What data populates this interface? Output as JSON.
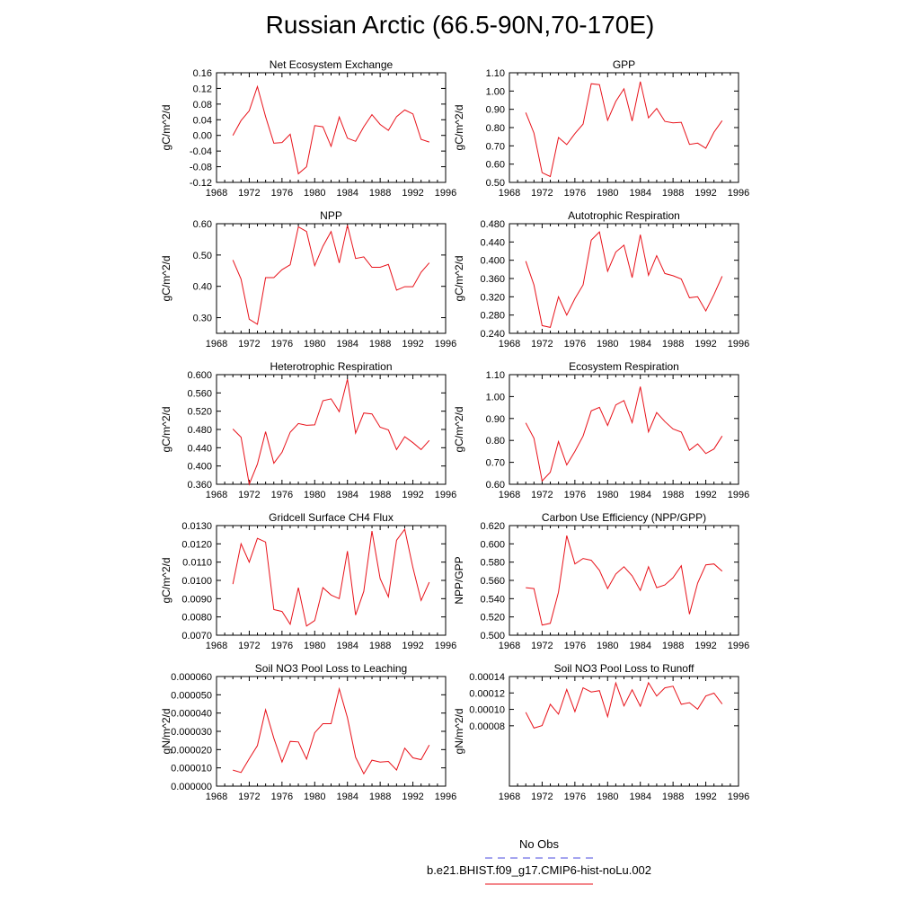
{
  "title": "Russian Arctic (66.5-90N,70-170E)",
  "legend": {
    "obs_label": "No Obs",
    "obs_color": "#4a4adf",
    "model_label": "b.e21.BHIST.f09_g17.CMIP6-hist-noLu.002",
    "model_color": "#e8121a"
  },
  "chart_data": [
    {
      "type": "line",
      "title": "Net Ecosystem Exchange",
      "ylabel": "gC/m^2/d",
      "xlim": [
        1968,
        1996
      ],
      "x_ticks": [
        "1968",
        "1972",
        "1976",
        "1980",
        "1984",
        "1988",
        "1992",
        "1996"
      ],
      "ylim": [
        -0.12,
        0.16
      ],
      "y_ticks": [
        "-0.12",
        "-0.08",
        "-0.04",
        "0.00",
        "0.04",
        "0.08",
        "0.12",
        "0.16"
      ],
      "x": [
        1970,
        1971,
        1972,
        1973,
        1974,
        1975,
        1976,
        1977,
        1978,
        1979,
        1980,
        1981,
        1982,
        1983,
        1984,
        1985,
        1986,
        1987,
        1988,
        1989,
        1990,
        1991,
        1992,
        1993,
        1994
      ],
      "series": [
        {
          "color": "#e8121a",
          "values": [
            0.0,
            0.038,
            0.063,
            0.125,
            0.048,
            -0.02,
            -0.018,
            0.003,
            -0.098,
            -0.08,
            0.025,
            0.022,
            -0.028,
            0.047,
            -0.007,
            -0.015,
            0.022,
            0.053,
            0.028,
            0.013,
            0.048,
            0.065,
            0.055,
            -0.01,
            -0.017
          ]
        }
      ]
    },
    {
      "type": "line",
      "title": "GPP",
      "ylabel": "gC/m^2/d",
      "xlim": [
        1968,
        1996
      ],
      "x_ticks": [
        "1968",
        "1972",
        "1976",
        "1980",
        "1984",
        "1988",
        "1992",
        "1996"
      ],
      "ylim": [
        0.5,
        1.1
      ],
      "y_ticks": [
        "0.50",
        "0.60",
        "0.70",
        "0.80",
        "0.90",
        "1.00",
        "1.10"
      ],
      "x": [
        1970,
        1971,
        1972,
        1973,
        1974,
        1975,
        1976,
        1977,
        1978,
        1979,
        1980,
        1981,
        1982,
        1983,
        1984,
        1985,
        1986,
        1987,
        1988,
        1989,
        1990,
        1991,
        1992,
        1993,
        1994
      ],
      "series": [
        {
          "color": "#e8121a",
          "values": [
            0.882,
            0.77,
            0.553,
            0.532,
            0.746,
            0.707,
            0.767,
            0.819,
            1.04,
            1.035,
            0.84,
            0.943,
            1.012,
            0.836,
            1.052,
            0.853,
            0.905,
            0.834,
            0.826,
            0.829,
            0.708,
            0.715,
            0.687,
            0.775,
            0.838
          ]
        }
      ]
    },
    {
      "type": "line",
      "title": "NPP",
      "ylabel": "gC/m^2/d",
      "xlim": [
        1968,
        1996
      ],
      "x_ticks": [
        "1968",
        "1972",
        "1976",
        "1980",
        "1984",
        "1988",
        "1992",
        "1996"
      ],
      "ylim": [
        0.25,
        0.6
      ],
      "y_ticks": [
        "0.30",
        "0.40",
        "0.50",
        "0.60"
      ],
      "x": [
        1970,
        1971,
        1972,
        1973,
        1974,
        1975,
        1976,
        1977,
        1978,
        1979,
        1980,
        1981,
        1982,
        1983,
        1984,
        1985,
        1986,
        1987,
        1988,
        1989,
        1990,
        1991,
        1992,
        1993,
        1994
      ],
      "series": [
        {
          "color": "#e8121a",
          "values": [
            0.484,
            0.423,
            0.295,
            0.279,
            0.428,
            0.428,
            0.453,
            0.469,
            0.59,
            0.575,
            0.466,
            0.528,
            0.575,
            0.475,
            0.595,
            0.489,
            0.494,
            0.461,
            0.461,
            0.47,
            0.388,
            0.399,
            0.399,
            0.445,
            0.475
          ]
        }
      ]
    },
    {
      "type": "line",
      "title": "Autotrophic Respiration",
      "ylabel": "gC/m^2/d",
      "xlim": [
        1968,
        1996
      ],
      "x_ticks": [
        "1968",
        "1972",
        "1976",
        "1980",
        "1984",
        "1988",
        "1992",
        "1996"
      ],
      "ylim": [
        0.24,
        0.48
      ],
      "y_ticks": [
        "0.240",
        "0.280",
        "0.320",
        "0.360",
        "0.400",
        "0.440",
        "0.480"
      ],
      "x": [
        1970,
        1971,
        1972,
        1973,
        1974,
        1975,
        1976,
        1977,
        1978,
        1979,
        1980,
        1981,
        1982,
        1983,
        1984,
        1985,
        1986,
        1987,
        1988,
        1989,
        1990,
        1991,
        1992,
        1993,
        1994
      ],
      "series": [
        {
          "color": "#e8121a",
          "values": [
            0.398,
            0.346,
            0.257,
            0.253,
            0.32,
            0.28,
            0.316,
            0.346,
            0.444,
            0.462,
            0.376,
            0.418,
            0.433,
            0.362,
            0.456,
            0.367,
            0.41,
            0.371,
            0.366,
            0.359,
            0.318,
            0.32,
            0.289,
            0.325,
            0.365
          ]
        }
      ]
    },
    {
      "type": "line",
      "title": "Heterotrophic Respiration",
      "ylabel": "gC/m^2/d",
      "xlim": [
        1968,
        1996
      ],
      "x_ticks": [
        "1968",
        "1972",
        "1976",
        "1980",
        "1984",
        "1988",
        "1992",
        "1996"
      ],
      "ylim": [
        0.36,
        0.6
      ],
      "y_ticks": [
        "0.360",
        "0.400",
        "0.440",
        "0.480",
        "0.520",
        "0.560",
        "0.600"
      ],
      "x": [
        1970,
        1971,
        1972,
        1973,
        1974,
        1975,
        1976,
        1977,
        1978,
        1979,
        1980,
        1981,
        1982,
        1983,
        1984,
        1985,
        1986,
        1987,
        1988,
        1989,
        1990,
        1991,
        1992,
        1993,
        1994
      ],
      "series": [
        {
          "color": "#e8121a",
          "values": [
            0.481,
            0.463,
            0.36,
            0.404,
            0.475,
            0.406,
            0.43,
            0.474,
            0.493,
            0.489,
            0.49,
            0.543,
            0.547,
            0.519,
            0.59,
            0.472,
            0.516,
            0.514,
            0.485,
            0.479,
            0.436,
            0.464,
            0.451,
            0.436,
            0.456
          ]
        }
      ]
    },
    {
      "type": "line",
      "title": "Ecosystem Respiration",
      "ylabel": "gC/m^2/d",
      "xlim": [
        1968,
        1996
      ],
      "x_ticks": [
        "1968",
        "1972",
        "1976",
        "1980",
        "1984",
        "1988",
        "1992",
        "1996"
      ],
      "ylim": [
        0.6,
        1.1
      ],
      "y_ticks": [
        "0.60",
        "0.70",
        "0.80",
        "0.90",
        "1.00",
        "1.10"
      ],
      "x": [
        1970,
        1971,
        1972,
        1973,
        1974,
        1975,
        1976,
        1977,
        1978,
        1979,
        1980,
        1981,
        1982,
        1983,
        1984,
        1985,
        1986,
        1987,
        1988,
        1989,
        1990,
        1991,
        1992,
        1993,
        1994
      ],
      "series": [
        {
          "color": "#e8121a",
          "values": [
            0.88,
            0.81,
            0.615,
            0.655,
            0.795,
            0.688,
            0.75,
            0.82,
            0.935,
            0.951,
            0.868,
            0.962,
            0.982,
            0.881,
            1.045,
            0.839,
            0.927,
            0.886,
            0.852,
            0.838,
            0.755,
            0.784,
            0.74,
            0.761,
            0.82
          ]
        }
      ]
    },
    {
      "type": "line",
      "title": "Gridcell Surface CH4 Flux",
      "ylabel": "gC/m^2/d",
      "xlim": [
        1968,
        1996
      ],
      "x_ticks": [
        "1968",
        "1972",
        "1976",
        "1980",
        "1984",
        "1988",
        "1992",
        "1996"
      ],
      "ylim": [
        0.007,
        0.013
      ],
      "y_ticks": [
        "0.0070",
        "0.0080",
        "0.0090",
        "0.0100",
        "0.0110",
        "0.0120",
        "0.0130"
      ],
      "x": [
        1970,
        1971,
        1972,
        1973,
        1974,
        1975,
        1976,
        1977,
        1978,
        1979,
        1980,
        1981,
        1982,
        1983,
        1984,
        1985,
        1986,
        1987,
        1988,
        1989,
        1990,
        1991,
        1992,
        1993,
        1994
      ],
      "series": [
        {
          "color": "#e8121a",
          "values": [
            0.0098,
            0.012,
            0.011,
            0.0123,
            0.0121,
            0.0084,
            0.0083,
            0.0076,
            0.0096,
            0.0075,
            0.0078,
            0.0096,
            0.0092,
            0.009,
            0.0116,
            0.0081,
            0.0094,
            0.0127,
            0.0101,
            0.0091,
            0.0122,
            0.0128,
            0.0107,
            0.0089,
            0.0099
          ]
        }
      ]
    },
    {
      "type": "line",
      "title": "Carbon Use Efficiency (NPP/GPP)",
      "ylabel": "NPP/GPP",
      "xlim": [
        1968,
        1996
      ],
      "x_ticks": [
        "1968",
        "1972",
        "1976",
        "1980",
        "1984",
        "1988",
        "1992",
        "1996"
      ],
      "ylim": [
        0.5,
        0.62
      ],
      "y_ticks": [
        "0.500",
        "0.520",
        "0.540",
        "0.560",
        "0.580",
        "0.600",
        "0.620"
      ],
      "x": [
        1970,
        1971,
        1972,
        1973,
        1974,
        1975,
        1976,
        1977,
        1978,
        1979,
        1980,
        1981,
        1982,
        1983,
        1984,
        1985,
        1986,
        1987,
        1988,
        1989,
        1990,
        1991,
        1992,
        1993,
        1994
      ],
      "series": [
        {
          "color": "#e8121a",
          "values": [
            0.552,
            0.551,
            0.511,
            0.513,
            0.547,
            0.609,
            0.578,
            0.584,
            0.582,
            0.571,
            0.551,
            0.567,
            0.575,
            0.565,
            0.549,
            0.575,
            0.552,
            0.555,
            0.563,
            0.576,
            0.523,
            0.557,
            0.577,
            0.578,
            0.57
          ]
        }
      ]
    },
    {
      "type": "line",
      "title": "Soil NO3 Pool Loss to Leaching",
      "ylabel": "gN/m^2/d",
      "xlim": [
        1968,
        1996
      ],
      "x_ticks": [
        "1968",
        "1972",
        "1976",
        "1980",
        "1984",
        "1988",
        "1992",
        "1996"
      ],
      "ylim": [
        0.0,
        6e-05
      ],
      "y_ticks": [
        "0.000000",
        "0.000010",
        "0.000020",
        "0.000030",
        "0.000040",
        "0.000050",
        "0.000060"
      ],
      "x": [
        1970,
        1971,
        1972,
        1973,
        1974,
        1975,
        1976,
        1977,
        1978,
        1979,
        1980,
        1981,
        1982,
        1983,
        1984,
        1985,
        1986,
        1987,
        1988,
        1989,
        1990,
        1991,
        1992,
        1993,
        1994
      ],
      "series": [
        {
          "color": "#e8121a",
          "values": [
            8.8e-06,
            7.5e-06,
            1.5e-05,
            2.22e-05,
            4.18e-05,
            2.62e-05,
            1.32e-05,
            2.45e-05,
            2.42e-05,
            1.48e-05,
            2.92e-05,
            3.42e-05,
            3.42e-05,
            5.32e-05,
            3.75e-05,
            1.58e-05,
            6.8e-06,
            1.42e-05,
            1.32e-05,
            1.35e-05,
            8.8e-06,
            2.08e-05,
            1.55e-05,
            1.45e-05,
            2.25e-05
          ]
        }
      ]
    },
    {
      "type": "line",
      "title": "Soil NO3 Pool Loss to Runoff",
      "ylabel": "gN/m^2/d",
      "xlim": [
        1968,
        1996
      ],
      "x_ticks": [
        "1968",
        "1972",
        "1976",
        "1980",
        "1984",
        "1988",
        "1992",
        "1996"
      ],
      "ylim": [
        6.5e-06,
        0.00014
      ],
      "y_ticks": [
        "0.00008",
        "0.00010",
        "0.00012",
        "0.00014"
      ],
      "x": [
        1970,
        1971,
        1972,
        1973,
        1974,
        1975,
        1976,
        1977,
        1978,
        1979,
        1980,
        1981,
        1982,
        1983,
        1984,
        1985,
        1986,
        1987,
        1988,
        1989,
        1990,
        1991,
        1992,
        1993,
        1994
      ],
      "series": [
        {
          "color": "#e8121a",
          "values": [
            9.65e-05,
            7.72e-05,
            8.02e-05,
            0.0001062,
            9.42e-05,
            0.0001242,
            9.72e-05,
            0.0001262,
            0.0001212,
            0.0001228,
            9.12e-05,
            0.0001322,
            0.0001042,
            0.0001238,
            0.0001038,
            0.0001325,
            0.0001162,
            0.0001262,
            0.0001282,
            0.0001062,
            0.0001082,
            0.0001002,
            0.0001162,
            0.0001198,
            0.0001065
          ]
        }
      ]
    }
  ]
}
